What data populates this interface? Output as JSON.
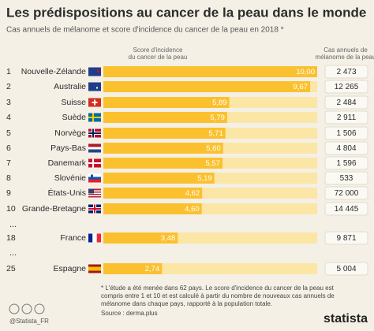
{
  "chart_data": {
    "type": "bar",
    "title": "Les prédispositions au cancer de la peau dans le monde",
    "subtitle": "Cas annuels de mélanome et score d'incidence du cancer de la peau en 2018 *",
    "bar_header": [
      "Score d'incidence",
      "du cancer de la peau"
    ],
    "cases_header": [
      "Cas annuels de",
      "mélanome de la peau"
    ],
    "ranks": [
      1,
      2,
      3,
      4,
      5,
      6,
      7,
      8,
      9,
      10,
      18,
      25
    ],
    "categories": [
      "Nouvelle-Zélande",
      "Australie",
      "Suisse",
      "Suède",
      "Norvège",
      "Pays-Bas",
      "Danemark",
      "Slovénie",
      "États-Unis",
      "Grande-Bretagne",
      "France",
      "Espagne"
    ],
    "values": [
      10.0,
      9.67,
      5.89,
      5.79,
      5.71,
      5.6,
      5.57,
      5.19,
      4.62,
      4.6,
      3.48,
      2.74
    ],
    "value_labels": [
      "10,00",
      "9,67",
      "5,89",
      "5,79",
      "5,71",
      "5,60",
      "5,57",
      "5,19",
      "4,62",
      "4,60",
      "3,48",
      "2,74"
    ],
    "color": "#fbc02d",
    "xlim": [
      0,
      10
    ],
    "cases": [
      {
        "value": 2473,
        "label": "2 473"
      },
      {
        "value": 12265,
        "label": "12 265"
      },
      {
        "value": 2484,
        "label": "2 484"
      },
      {
        "value": 2911,
        "label": "2 911"
      },
      {
        "value": 1506,
        "label": "1 506"
      },
      {
        "value": 4804,
        "label": "4 804"
      },
      {
        "value": 1596,
        "label": "1 596"
      },
      {
        "value": 533,
        "label": "533"
      },
      {
        "value": 72000,
        "label": "72 000"
      },
      {
        "value": 14445,
        "label": "14 445"
      },
      {
        "value": 9871,
        "label": "9 871"
      },
      {
        "value": 5004,
        "label": "5 004"
      }
    ],
    "gap_marks": [
      "...",
      "..."
    ],
    "footnote": [
      "* L'étude a été menée dans 62 pays. Le score d'incidence du cancer de la peau est",
      "compris entre 1 et 10 et est calculé à partir du nombre de nouveaux cas annuels de",
      "mélanome dans chaque pays, rapporté à la population totale."
    ],
    "handle": "@Statista_FR",
    "source": "Source : derma.plus",
    "brand": "statista"
  }
}
